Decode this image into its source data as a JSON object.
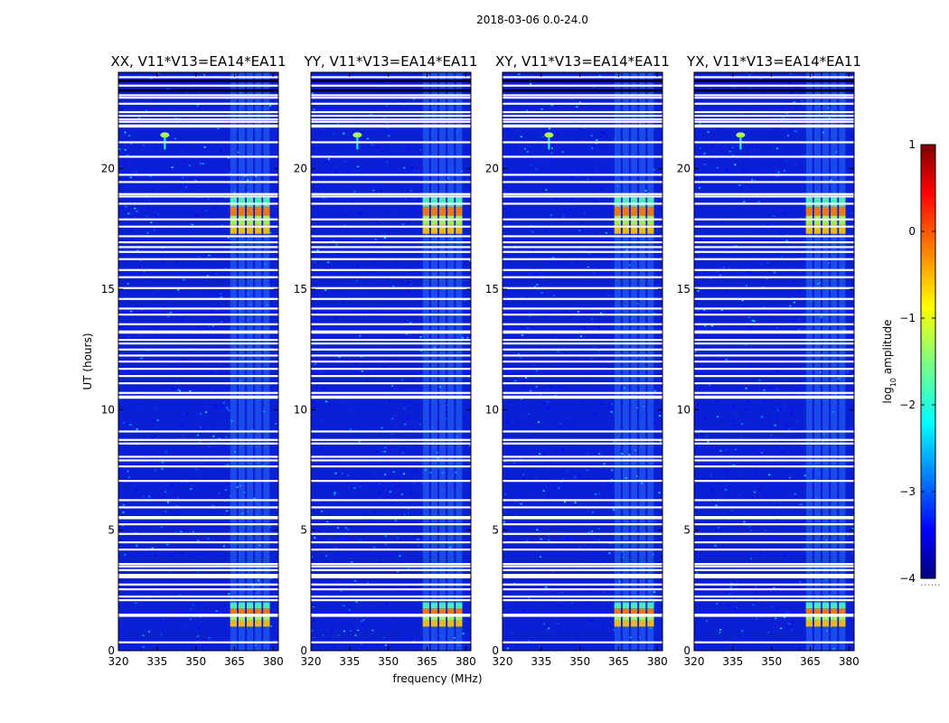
{
  "figure_title": "2018-03-06 0.0-24.0",
  "chart_data": {
    "type": "heatmap",
    "title": "2018-03-06 0.0-24.0",
    "xlabel": "frequency (MHz)",
    "ylabel": "UT (hours)",
    "xlim": [
      320,
      382
    ],
    "ylim": [
      0,
      24
    ],
    "x_ticks": [
      320,
      335,
      350,
      365,
      380
    ],
    "y_ticks": [
      0,
      5,
      10,
      15,
      20
    ],
    "panels": [
      {
        "title": "XX, V11*V13=EA14*EA11"
      },
      {
        "title": "YY, V11*V13=EA14*EA11"
      },
      {
        "title": "XY, V11*V13=EA14*EA11"
      },
      {
        "title": "YX, V11*V13=EA14*EA11"
      }
    ],
    "colorbar": {
      "label": "log",
      "label_sub": "10",
      "label_suffix": " amplitude",
      "min": -4,
      "max": 1,
      "ticks": [
        1,
        0,
        -1,
        -2,
        -3,
        -4
      ],
      "colormap": "jet",
      "under_text": "......"
    },
    "rfi_band_mhz": [
      363,
      379
    ],
    "strong_rfi_hours": [
      [
        1.0,
        2.0
      ],
      [
        17.3,
        18.8
      ]
    ],
    "point_source": {
      "freq_mhz": 338,
      "ut_hours": 21.4
    },
    "flagged_ut_hours": [
      0.35,
      1.45,
      1.5,
      2.1,
      2.25,
      2.55,
      2.75,
      3.05,
      3.1,
      3.15,
      3.35,
      3.5,
      3.6,
      4.2,
      4.5,
      4.85,
      5.25,
      5.5,
      5.55,
      5.95,
      6.25,
      7.05,
      7.65,
      7.9,
      8.05,
      8.6,
      8.75,
      9.1,
      10.5,
      10.55,
      10.7,
      11.1,
      11.4,
      11.7,
      12.0,
      12.25,
      12.5,
      12.75,
      12.9,
      13.2,
      13.25,
      13.55,
      13.95,
      14.2,
      14.6,
      15.05,
      15.5,
      15.8,
      16.25,
      16.55,
      16.75,
      16.95,
      17.2,
      17.6,
      17.9,
      18.55,
      18.85,
      18.95,
      19.45,
      19.75,
      20.5,
      21.1,
      21.75,
      21.8,
      21.95,
      22.05,
      22.2,
      22.35,
      22.7,
      22.95,
      23.05,
      23.45,
      23.8
    ]
  }
}
